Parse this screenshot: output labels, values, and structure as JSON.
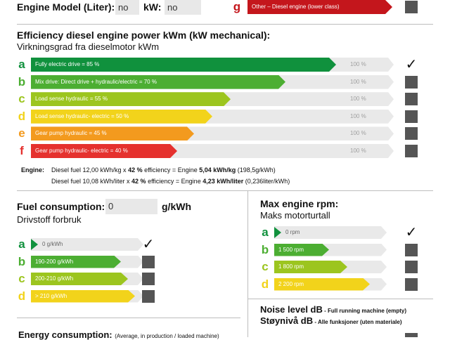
{
  "colors": {
    "a": "#10913d",
    "b": "#4cae32",
    "c": "#9cc51f",
    "d": "#f2d31b",
    "e": "#f39a1e",
    "f": "#e5312e",
    "g": "#c4161c"
  },
  "top": {
    "engine_model_label": "Engine Model (Liter):",
    "engine_model_value": "no",
    "kw_label": "kW:",
    "kw_value": "no",
    "g_letter": "g",
    "g_bar_label": "Other – Diesel engine (lower class)"
  },
  "efficiency": {
    "title": "Efficiency diesel engine power kWm (kW mechanical):",
    "subtitle": "Virkningsgrad fra dieselmotor kWm",
    "rows": [
      {
        "letter": "a",
        "label": "Fully electric drive = 85 %",
        "pct": "100 %",
        "checked": true
      },
      {
        "letter": "b",
        "label": "Mix drive: Direct drive + hydraulic/electric = 70 %",
        "pct": "100 %",
        "checked": false
      },
      {
        "letter": "c",
        "label": "Load sense hydraulic = 55 %",
        "pct": "100 %",
        "checked": false
      },
      {
        "letter": "d",
        "label": "Load sense hydraulic- electric = 50 %",
        "pct": "100 %",
        "checked": false
      },
      {
        "letter": "e",
        "label": "Gear pump hydraulic = 45 %",
        "pct": "100 %",
        "checked": false
      },
      {
        "letter": "f",
        "label": "Gear pump hydraulic- electric = 40 %",
        "pct": "100 %",
        "checked": false
      }
    ],
    "engine_label": "Engine:",
    "line1": {
      "pre": "Diesel fuel 12,00 kWh/kg x ",
      "eff": "42 %",
      "mid": " efficiency = Engine ",
      "val": "5,04 kWh/kg",
      "post": " (198,5g/kWh)"
    },
    "line2": {
      "pre": "Diesel fuel 10,08 kWh/liter x ",
      "eff": "42 %",
      "mid": " efficiency = Engine ",
      "val": "4,23 kWh/liter",
      "post": " (0,236liter/kWh)"
    }
  },
  "fuel": {
    "title": "Fuel consumption:",
    "value": "0",
    "unit": "g/kWh",
    "subtitle": "Drivstoff forbruk",
    "rows": [
      {
        "letter": "a",
        "label": "0 g/kWh",
        "checked": true
      },
      {
        "letter": "b",
        "label": "190-200 g/kWh",
        "checked": false
      },
      {
        "letter": "c",
        "label": "200-210 g/kWh",
        "checked": false
      },
      {
        "letter": "d",
        "label": "> 210 g/kWh",
        "checked": false
      }
    ]
  },
  "rpm": {
    "title": "Max engine rpm:",
    "subtitle": "Maks motorturtall",
    "rows": [
      {
        "letter": "a",
        "label": "0 rpm",
        "checked": true
      },
      {
        "letter": "b",
        "label": "1 500 rpm",
        "checked": false
      },
      {
        "letter": "c",
        "label": "1 800 rpm",
        "checked": false
      },
      {
        "letter": "d",
        "label": "2 200 rpm",
        "checked": false
      }
    ]
  },
  "noise": {
    "title": "Noise level dB",
    "title_note": " - Full running machine (empty)",
    "subtitle": "Støynivå dB",
    "subtitle_note": " - Alle funksjoner (uten materiale)"
  },
  "energy": {
    "title": "Energy consumption:",
    "note": "(Average, in production / loaded machine)"
  }
}
